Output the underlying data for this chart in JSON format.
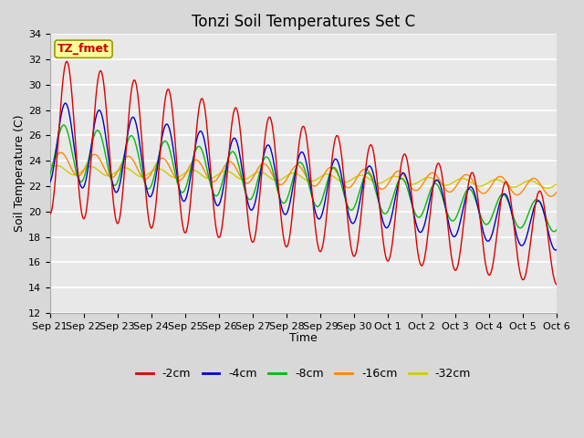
{
  "title": "Tonzi Soil Temperatures Set C",
  "xlabel": "Time",
  "ylabel": "Soil Temperature (C)",
  "ylim": [
    12,
    34
  ],
  "yticks": [
    12,
    14,
    16,
    18,
    20,
    22,
    24,
    26,
    28,
    30,
    32,
    34
  ],
  "xtick_labels": [
    "Sep 21",
    "Sep 22",
    "Sep 23",
    "Sep 24",
    "Sep 25",
    "Sep 26",
    "Sep 27",
    "Sep 28",
    "Sep 29",
    "Sep 30",
    "Oct 1",
    "Oct 2",
    "Oct 3",
    "Oct 4",
    "Oct 5",
    "Oct 6"
  ],
  "n_days": 15,
  "pts_per_day": 96,
  "series_colors": [
    "#dd0000",
    "#0000cc",
    "#00bb00",
    "#ff8800",
    "#cccc00"
  ],
  "series_labels": [
    "-2cm",
    "-4cm",
    "-8cm",
    "-16cm",
    "-32cm"
  ],
  "annotation_text": "TZ_fmet",
  "annotation_bg": "#ffff99",
  "annotation_border": "#999900",
  "fig_facecolor": "#d8d8d8",
  "ax_facecolor": "#e8e8e8",
  "grid_color": "#ffffff",
  "title_fontsize": 12,
  "tick_fontsize": 8,
  "label_fontsize": 9,
  "legend_fontsize": 9
}
